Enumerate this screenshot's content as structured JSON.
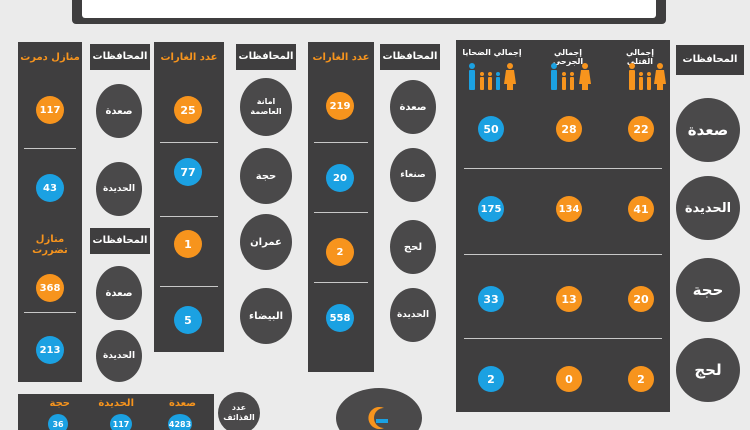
{
  "colors": {
    "dark": "#3f3e3f",
    "orange": "#f7941d",
    "blue": "#1ba1e2",
    "background": "#ebebeb"
  },
  "header_strip": "",
  "houses": {
    "gov_label_top": "المحافظات",
    "gov_label_bottom": "المحافظات",
    "destroyed_label": "منازل دمرت",
    "damaged_label": "منازل تضررت",
    "destroyed": [
      {
        "gov": "صعدة",
        "value": "117"
      },
      {
        "gov": "الحديدة",
        "value": "43"
      }
    ],
    "damaged": [
      {
        "gov": "صعدة",
        "value": "368"
      },
      {
        "gov": "الحديدة",
        "value": "213"
      }
    ]
  },
  "raids_a": {
    "header": "عدد الغارات",
    "gov_label": "المحافظات",
    "rows": [
      {
        "gov": "امانة العاصمة",
        "value": "25"
      },
      {
        "gov": "حجة",
        "value": "77"
      },
      {
        "gov": "عمران",
        "value": "1"
      },
      {
        "gov": "البيضاء",
        "value": "5"
      }
    ]
  },
  "raids_b": {
    "header": "عدد الغارات",
    "gov_label": "المحافظات",
    "rows": [
      {
        "gov": "صعدة",
        "value": "219"
      },
      {
        "gov": "صنعاء",
        "value": "20"
      },
      {
        "gov": "لحج",
        "value": "2"
      },
      {
        "gov": "الحديدة",
        "value": "558"
      }
    ]
  },
  "casualties": {
    "gov_label": "المحافظات",
    "killed_label": "إجمالي القتلى",
    "wounded_label": "إجمالي الجرحى",
    "victims_label": "إجمالي الضحايا",
    "rows": [
      {
        "gov": "صعدة",
        "killed": "22",
        "wounded": "28",
        "victims": "50"
      },
      {
        "gov": "الحديدة",
        "killed": "41",
        "wounded": "134",
        "victims": "175"
      },
      {
        "gov": "حجة",
        "killed": "20",
        "wounded": "13",
        "victims": "33"
      },
      {
        "gov": "لحج",
        "killed": "2",
        "wounded": "0",
        "victims": "2"
      }
    ]
  },
  "shells": {
    "label": "عدد القذائف",
    "items": [
      {
        "gov": "صعدة",
        "value": "4283"
      },
      {
        "gov": "الحديدة",
        "value": "117"
      },
      {
        "gov": "حجة",
        "value": "36"
      }
    ]
  }
}
